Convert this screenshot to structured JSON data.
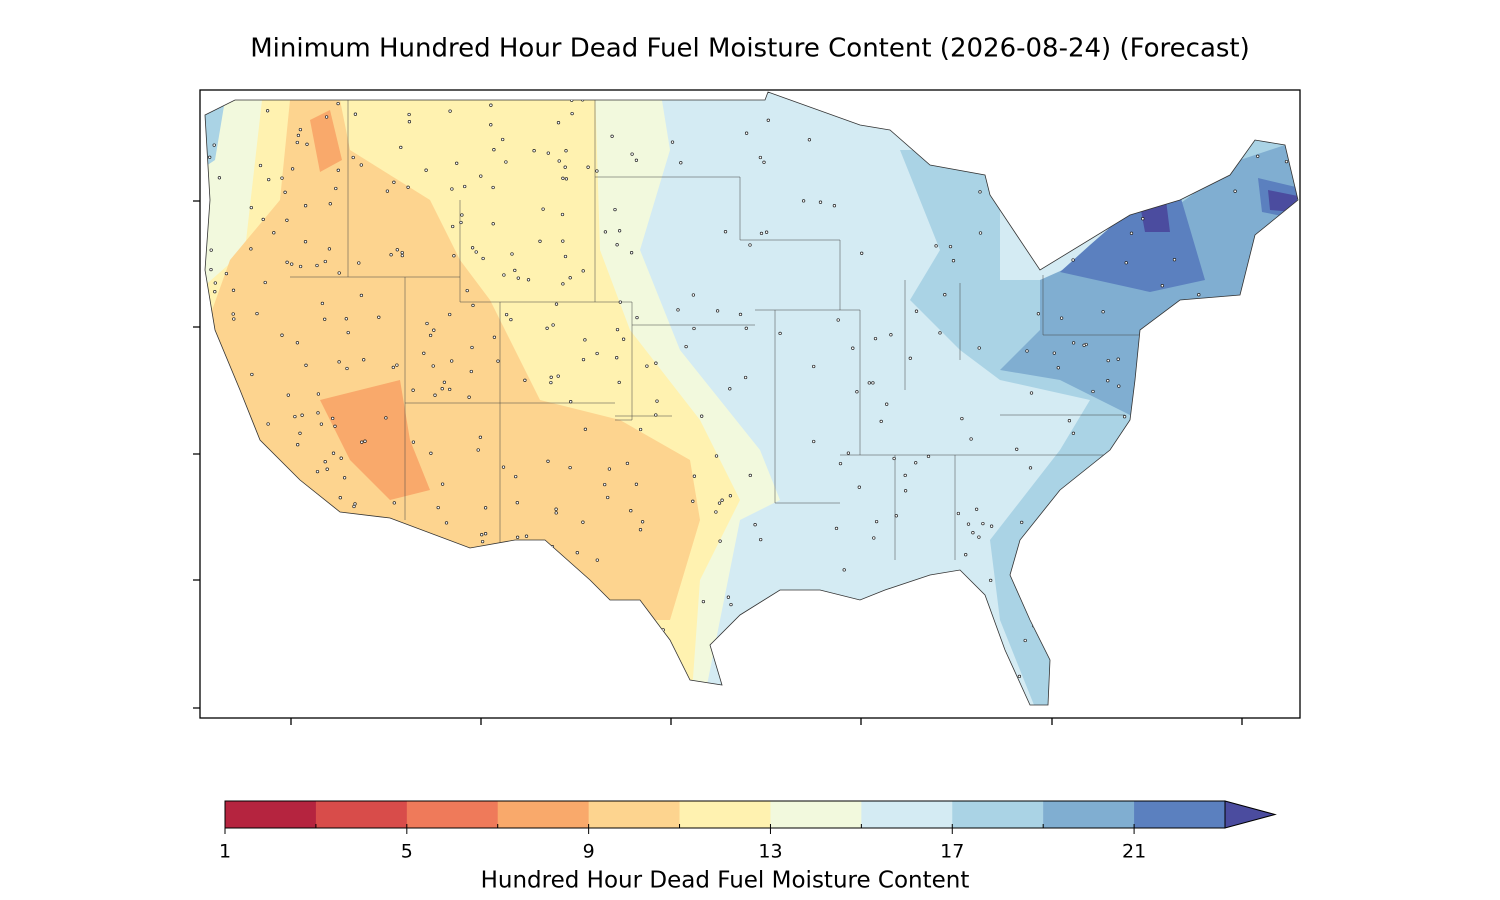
{
  "chart_data": {
    "type": "map",
    "title": "Minimum Hundred Hour Dead Fuel Moisture Content (2026-08-24) (Forecast)",
    "colorbar": {
      "label": "Hundred Hour Dead Fuel Moisture Content",
      "lim": [
        1,
        23
      ],
      "boundaries": [
        1,
        3,
        5,
        7,
        9,
        11,
        13,
        15,
        17,
        19,
        21,
        23
      ],
      "colors": [
        "#b5243f",
        "#d84c4a",
        "#ef7a5a",
        "#f9a96b",
        "#fdd48f",
        "#fff2b0",
        "#f2f9dd",
        "#d4ebf3",
        "#aad3e5",
        "#80aed1",
        "#5b80bf"
      ],
      "extend_color": "#4b4c9f",
      "ticks": [
        1,
        5,
        9,
        13,
        17,
        21
      ]
    }
  }
}
